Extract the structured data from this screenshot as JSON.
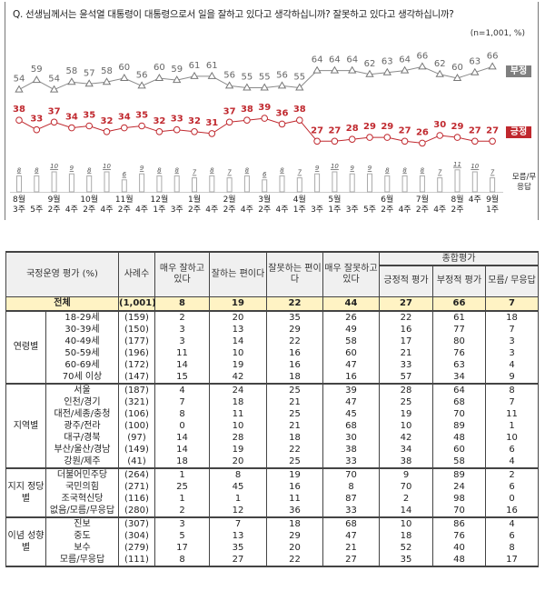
{
  "chart_data": {
    "type": "line",
    "title": "Q. 선생님께서는 윤석열 대통령이 대통령으로서 일을 잘하고 있다고 생각하십니까? 잘못하고 있다고 생각하십니까?",
    "note": "(n=1,001, %)",
    "x": [
      [
        "8월",
        "3주"
      ],
      [
        "",
        "5주"
      ],
      [
        "9월",
        "2주"
      ],
      [
        "",
        "4주"
      ],
      [
        "10월",
        "2주"
      ],
      [
        "",
        "4주"
      ],
      [
        "11월",
        "2주"
      ],
      [
        "",
        "4주"
      ],
      [
        "12월",
        "1주"
      ],
      [
        "",
        "3주"
      ],
      [
        "1월",
        "2주"
      ],
      [
        "",
        "4주"
      ],
      [
        "2월",
        "2주"
      ],
      [
        "",
        "4주"
      ],
      [
        "3월",
        "2주"
      ],
      [
        "",
        "4주"
      ],
      [
        "4월",
        "1주"
      ],
      [
        "",
        "3주"
      ],
      [
        "5월",
        "1주"
      ],
      [
        "",
        "3주"
      ],
      [
        "",
        "5주"
      ],
      [
        "6월",
        "2주"
      ],
      [
        "",
        "4주"
      ],
      [
        "7월",
        "2주"
      ],
      [
        "",
        "4주"
      ],
      [
        "8월",
        "2주"
      ],
      [
        "4주",
        ""
      ],
      [
        "9월",
        "1주"
      ]
    ],
    "series": [
      {
        "name": "부정",
        "color": "#7f7f7f",
        "values": [
          54,
          59,
          54,
          58,
          57,
          58,
          60,
          56,
          60,
          59,
          61,
          61,
          56,
          55,
          55,
          56,
          55,
          64,
          64,
          64,
          62,
          63,
          64,
          66,
          62,
          60,
          63,
          66
        ]
      },
      {
        "name": "긍정",
        "color": "#c0282e",
        "values": [
          38,
          33,
          37,
          34,
          35,
          32,
          34,
          35,
          32,
          33,
          32,
          31,
          37,
          38,
          39,
          36,
          38,
          27,
          27,
          28,
          29,
          29,
          27,
          26,
          30,
          29,
          27,
          27
        ]
      },
      {
        "name": "모름/무응답",
        "type": "bar",
        "color": "#bbbbbb",
        "values": [
          8,
          8,
          10,
          9,
          8,
          10,
          6,
          9,
          8,
          8,
          7,
          8,
          7,
          8,
          6,
          8,
          7,
          9,
          10,
          9,
          9,
          8,
          8,
          8,
          7,
          11,
          10,
          7
        ]
      }
    ],
    "legend": {
      "neg": "부정",
      "pos": "긍정",
      "dk": "모름/무응답"
    }
  },
  "table": {
    "headers": {
      "label": "국정운영 평가 (%)",
      "n": "사례수",
      "c1": "매우 잘하고 있다",
      "c2": "잘하는 편이다",
      "c3": "잘못하는 편이다",
      "c4": "매우 잘못하고 있다",
      "summary": "종합평가",
      "c5": "긍정적 평가",
      "c6": "부정적 평가",
      "c7": "모름/ 무응답"
    },
    "total": {
      "label": "전체",
      "n": "(1,001)",
      "values": [
        8,
        19,
        22,
        44,
        27,
        66,
        7
      ]
    },
    "groups": [
      {
        "name": "연령별",
        "rows": [
          {
            "label": "18-29세",
            "n": "(159)",
            "values": [
              2,
              20,
              35,
              26,
              22,
              61,
              18
            ]
          },
          {
            "label": "30-39세",
            "n": "(150)",
            "values": [
              3,
              13,
              29,
              49,
              16,
              77,
              7
            ]
          },
          {
            "label": "40-49세",
            "n": "(177)",
            "values": [
              3,
              14,
              22,
              58,
              17,
              80,
              3
            ]
          },
          {
            "label": "50-59세",
            "n": "(196)",
            "values": [
              11,
              10,
              16,
              60,
              21,
              76,
              3
            ]
          },
          {
            "label": "60-69세",
            "n": "(172)",
            "values": [
              14,
              19,
              16,
              47,
              33,
              63,
              4
            ]
          },
          {
            "label": "70세 이상",
            "n": "(147)",
            "values": [
              15,
              42,
              18,
              16,
              57,
              34,
              9
            ]
          }
        ]
      },
      {
        "name": "지역별",
        "rows": [
          {
            "label": "서울",
            "n": "(187)",
            "values": [
              4,
              24,
              25,
              39,
              28,
              64,
              8
            ]
          },
          {
            "label": "인천/경기",
            "n": "(321)",
            "values": [
              7,
              18,
              21,
              47,
              25,
              68,
              7
            ]
          },
          {
            "label": "대전/세종/충청",
            "n": "(106)",
            "values": [
              8,
              11,
              25,
              45,
              19,
              70,
              11
            ]
          },
          {
            "label": "광주/전라",
            "n": "(100)",
            "values": [
              0,
              10,
              21,
              68,
              10,
              89,
              1
            ]
          },
          {
            "label": "대구/경북",
            "n": "(97)",
            "values": [
              14,
              28,
              18,
              30,
              42,
              48,
              10
            ]
          },
          {
            "label": "부산/울산/경남",
            "n": "(149)",
            "values": [
              14,
              19,
              22,
              38,
              34,
              60,
              6
            ]
          },
          {
            "label": "강원/제주",
            "n": "(41)",
            "values": [
              18,
              20,
              25,
              33,
              38,
              58,
              4
            ]
          }
        ]
      },
      {
        "name": "지지 정당별",
        "rows": [
          {
            "label": "더불어민주당",
            "n": "(264)",
            "values": [
              1,
              8,
              19,
              70,
              9,
              89,
              2
            ]
          },
          {
            "label": "국민의힘",
            "n": "(271)",
            "values": [
              25,
              45,
              16,
              8,
              70,
              24,
              6
            ]
          },
          {
            "label": "조국혁신당",
            "n": "(116)",
            "values": [
              1,
              1,
              11,
              87,
              2,
              98,
              0
            ]
          },
          {
            "label": "없음/모름/무응답",
            "n": "(280)",
            "values": [
              2,
              12,
              36,
              33,
              14,
              70,
              16
            ]
          }
        ]
      },
      {
        "name": "이념 성향별",
        "rows": [
          {
            "label": "진보",
            "n": "(307)",
            "values": [
              3,
              7,
              18,
              68,
              10,
              86,
              4
            ]
          },
          {
            "label": "중도",
            "n": "(304)",
            "values": [
              5,
              13,
              29,
              47,
              18,
              76,
              6
            ]
          },
          {
            "label": "보수",
            "n": "(279)",
            "values": [
              17,
              35,
              20,
              21,
              52,
              40,
              8
            ]
          },
          {
            "label": "모름/무응답",
            "n": "(111)",
            "values": [
              8,
              27,
              22,
              27,
              35,
              48,
              17
            ]
          }
        ]
      }
    ]
  }
}
